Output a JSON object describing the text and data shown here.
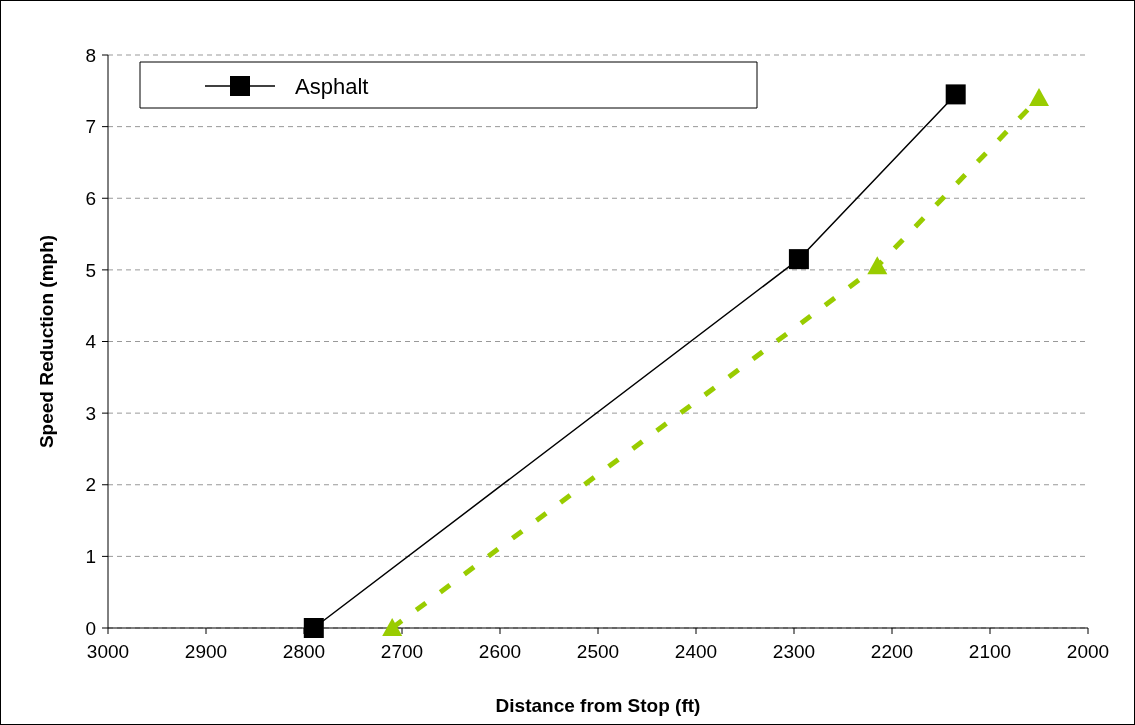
{
  "chart_data": {
    "type": "line",
    "xlabel": "Distance from Stop (ft)",
    "ylabel": "Speed Reduction (mph)",
    "xlim": [
      3000,
      2000
    ],
    "xticks": [
      3000,
      2900,
      2800,
      2700,
      2600,
      2500,
      2400,
      2300,
      2200,
      2100,
      2000
    ],
    "ylim": [
      0,
      8
    ],
    "yticks": [
      0,
      1,
      2,
      3,
      4,
      5,
      6,
      7,
      8
    ],
    "grid": "y",
    "legend": "top left",
    "series": [
      {
        "name": "Asphalt",
        "color": "#000000",
        "x": [
          2790,
          2295,
          2135
        ],
        "values": [
          0,
          5.15,
          7.45
        ],
        "marker": "square",
        "line_style": "solid"
      },
      {
        "color": "#99cc00",
        "x": [
          2710,
          2215,
          2050
        ],
        "values": [
          0,
          5.05,
          7.4
        ],
        "marker": "triangle",
        "line_style": "dashed"
      }
    ]
  }
}
